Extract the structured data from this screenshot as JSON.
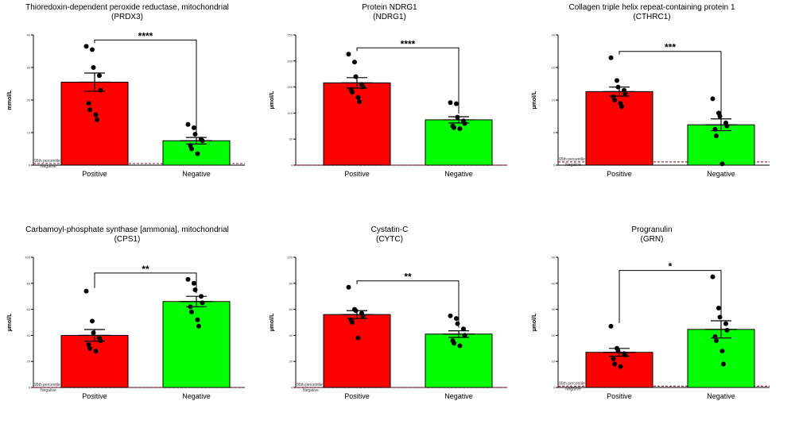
{
  "chart_data": [
    {
      "type": "bar",
      "title": "Thioredoxin-dependent peroxide reductase, mitochondrial",
      "subtitle": "(PRDX3)",
      "ylabel": "mmol/L",
      "ylim": [
        0,
        40
      ],
      "yticks": [
        "0",
        "10",
        "20",
        "30",
        "40"
      ],
      "categories": [
        "Positive",
        "Negative"
      ],
      "values": [
        25.5,
        7.5
      ],
      "errors": [
        2.8,
        1.0
      ],
      "points": [
        [
          36.5,
          35.5,
          30.0,
          27.5,
          23.0,
          19.0,
          17.0,
          15.5,
          14.0
        ],
        [
          12.5,
          11.5,
          9.5,
          8.0,
          7.5,
          6.0,
          5.0,
          3.5
        ]
      ],
      "threshold": 0.5,
      "threshold_labels": [
        "95th percentile",
        "Negative"
      ],
      "significance": "****",
      "colors": [
        "#ff0000",
        "#00ff00"
      ],
      "threshold_color": "#a0304a"
    },
    {
      "type": "bar",
      "title": "Protein NDRG1",
      "subtitle": "(NDRG1)",
      "ylabel": "µmol/L",
      "ylim": [
        0,
        250
      ],
      "yticks": [
        "0",
        "50",
        "100",
        "150",
        "200",
        "250"
      ],
      "categories": [
        "Positive",
        "Negative"
      ],
      "values": [
        158,
        87
      ],
      "errors": [
        10,
        6
      ],
      "points": [
        [
          213,
          198,
          170,
          155,
          150,
          145,
          140,
          130,
          122
        ],
        [
          120,
          118,
          92,
          85,
          80,
          75,
          72,
          70
        ]
      ],
      "threshold": 0,
      "threshold_labels": [],
      "significance": "****",
      "colors": [
        "#ff0000",
        "#00ff00"
      ],
      "threshold_color": "#a0304a"
    },
    {
      "type": "bar",
      "title": "Collagen triple helix repeat-containing protein 1",
      "subtitle": "(CTHRC1)",
      "ylabel": "µmol/L",
      "ylim": [
        0,
        20
      ],
      "yticks": [
        "0",
        "5",
        "10",
        "15",
        "20"
      ],
      "categories": [
        "Positive",
        "Negative"
      ],
      "values": [
        11.3,
        6.2
      ],
      "errors": [
        0.7,
        0.9
      ],
      "points": [
        [
          16.5,
          13.0,
          12.0,
          11.5,
          11.0,
          10.5,
          10.0,
          9.5,
          9.0
        ],
        [
          10.2,
          8.0,
          7.5,
          6.5,
          6.0,
          5.5,
          4.5,
          0.2
        ]
      ],
      "threshold": 0.5,
      "threshold_labels": [
        "95th percentile",
        "Negative"
      ],
      "significance": "***",
      "colors": [
        "#ff0000",
        "#00ff00"
      ],
      "threshold_color": "#a0304a"
    },
    {
      "type": "bar",
      "title": "Carbamoyl-phosphate synthase [ammonia], mitochondrial",
      "subtitle": "(CPS1)",
      "ylabel": "µmol/L",
      "ylim": [
        0,
        100
      ],
      "yticks": [
        "0",
        "20",
        "40",
        "60",
        "80",
        "100"
      ],
      "categories": [
        "Positive",
        "Negative"
      ],
      "values": [
        40,
        66
      ],
      "errors": [
        4.5,
        4.0
      ],
      "points": [
        [
          74,
          51,
          42,
          38,
          36,
          33,
          30,
          28
        ],
        [
          83,
          80,
          75,
          70,
          65,
          62,
          58,
          52,
          47
        ]
      ],
      "threshold": 0,
      "threshold_labels": [
        "95th percentile",
        "Negative"
      ],
      "significance": "**",
      "colors": [
        "#ff0000",
        "#00ff00"
      ],
      "threshold_color": "#a0304a"
    },
    {
      "type": "bar",
      "title": "Cystatin-C",
      "subtitle": "(CYTC)",
      "ylabel": "µmol/L",
      "ylim": [
        0,
        100
      ],
      "yticks": [
        "0",
        "20",
        "40",
        "60",
        "80",
        "100"
      ],
      "categories": [
        "Positive",
        "Negative"
      ],
      "values": [
        56,
        41
      ],
      "errors": [
        3.0,
        2.5
      ],
      "points": [
        [
          77,
          60,
          59,
          57,
          55,
          52,
          50,
          38
        ],
        [
          55,
          53,
          49,
          45,
          40,
          36,
          34,
          32
        ]
      ],
      "threshold": 0,
      "threshold_labels": [
        "95th percentile",
        "Negative"
      ],
      "significance": "**",
      "colors": [
        "#ff0000",
        "#00ff00"
      ],
      "threshold_color": "#a0304a"
    },
    {
      "type": "bar",
      "title": "Progranulin",
      "subtitle": "(GRN)",
      "ylabel": "µmol/L",
      "ylim": [
        0,
        50
      ],
      "yticks": [
        "0",
        "10",
        "20",
        "30",
        "40",
        "50"
      ],
      "categories": [
        "Positive",
        "Negative"
      ],
      "values": [
        13.5,
        22.3
      ],
      "errors": [
        1.5,
        3.3
      ],
      "points": [
        [
          23.5,
          15.0,
          14.0,
          13.0,
          12.5,
          11.0,
          9.0,
          8.0
        ],
        [
          42.5,
          30.5,
          27.0,
          24.5,
          22.0,
          19.5,
          18.0,
          14.0,
          9.0
        ]
      ],
      "threshold": 0.5,
      "threshold_labels": [
        "95th percentile",
        "Negative"
      ],
      "significance": "*",
      "colors": [
        "#ff0000",
        "#00ff00"
      ],
      "threshold_color": "#a0304a"
    }
  ]
}
